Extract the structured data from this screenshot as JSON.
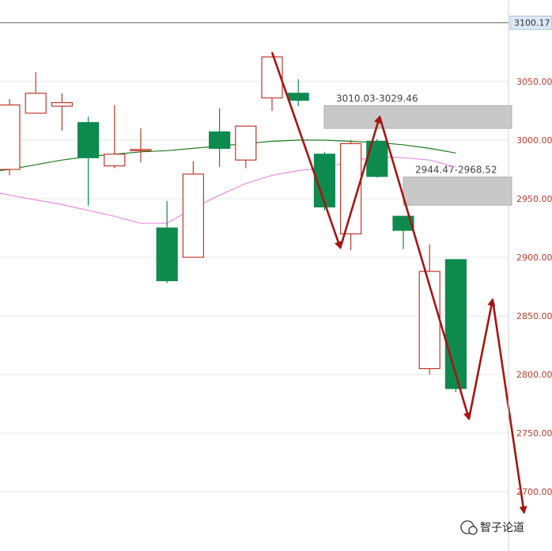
{
  "chart_data": {
    "type": "candlestick",
    "ylim": [
      2680,
      3100
    ],
    "yticks": [
      2700,
      2750,
      2800,
      2850,
      2900,
      2950,
      3000,
      3050
    ],
    "ytick_labels": [
      "2700.00",
      "2750.00",
      "2800.00",
      "2850.00",
      "2900.00",
      "2950.00",
      "3000.00",
      "3050.00"
    ],
    "last_price": {
      "value": 3100.17,
      "label": "3100.17"
    },
    "colors": {
      "up": "#c0392b",
      "down": "#0e8a4f",
      "ma_short": "#1f7a1f",
      "ma_long": "#e98ce3",
      "arrow": "#a51414",
      "zone": "#c8c8c8",
      "grid": "#e6e6e6"
    },
    "candles": [
      {
        "open": 2975,
        "high": 3035,
        "low": 2970,
        "close": 3030
      },
      {
        "open": 3023,
        "high": 3058,
        "low": 3023,
        "close": 3040
      },
      {
        "open": 3029,
        "high": 3040,
        "low": 3008,
        "close": 3032
      },
      {
        "open": 3015,
        "high": 3020,
        "low": 2944,
        "close": 2985
      },
      {
        "open": 2978,
        "high": 3030,
        "low": 2976,
        "close": 2988
      },
      {
        "open": 2991,
        "high": 3010,
        "low": 2981,
        "close": 2992
      },
      {
        "open": 2925,
        "high": 2948,
        "low": 2878,
        "close": 2880
      },
      {
        "open": 2900,
        "high": 2982,
        "low": 2900,
        "close": 2971
      },
      {
        "open": 3007,
        "high": 3027,
        "low": 2977,
        "close": 2993
      },
      {
        "open": 2983,
        "high": 3012,
        "low": 2976,
        "close": 3012
      },
      {
        "open": 3036,
        "high": 3072,
        "low": 3025,
        "close": 3071
      },
      {
        "open": 3040,
        "high": 3052,
        "low": 3029,
        "close": 3034
      },
      {
        "open": 2988,
        "high": 2990,
        "low": 2940,
        "close": 2943
      },
      {
        "open": 2920,
        "high": 3000,
        "low": 2906,
        "close": 2997
      },
      {
        "open": 2999,
        "high": 3001,
        "low": 2968,
        "close": 2969
      },
      {
        "open": 2935,
        "high": 2935,
        "low": 2907,
        "close": 2923
      },
      {
        "open": 2805,
        "high": 2911,
        "low": 2800,
        "close": 2888
      },
      {
        "open": 2898,
        "high": 2898,
        "low": 2785,
        "close": 2788
      }
    ],
    "moving_averages": [
      {
        "values": [
          2975,
          2979,
          2983,
          2986,
          2988,
          2990,
          2991,
          2993,
          2995,
          2997,
          2999,
          3000,
          3000,
          2999,
          2998,
          2996,
          2993,
          2989
        ]
      },
      {
        "values": [
          2953,
          2949,
          2945,
          2940,
          2935,
          2929,
          2929,
          2942,
          2953,
          2963,
          2970,
          2974,
          2976,
          2982,
          2986,
          2985,
          2983,
          2977
        ]
      }
    ],
    "zones": [
      {
        "label": "3010.03-3029.46",
        "low": 3010.03,
        "high": 3029.46
      },
      {
        "label": "2944.47-2968.52",
        "low": 2944.47,
        "high": 2968.52
      }
    ],
    "arrows": [
      {
        "from": [
          10,
          3075
        ],
        "to": [
          12.6,
          2908
        ]
      },
      {
        "from": [
          12.6,
          2908
        ],
        "to": [
          14.1,
          3020
        ]
      },
      {
        "from": [
          14.1,
          3020
        ],
        "to": [
          17.5,
          2762
        ]
      },
      {
        "from": [
          17.5,
          2762
        ],
        "to": [
          18.4,
          2864
        ]
      },
      {
        "from": [
          18.4,
          2864
        ],
        "to": [
          19.6,
          2682
        ]
      }
    ],
    "watermark": "智子论道"
  }
}
